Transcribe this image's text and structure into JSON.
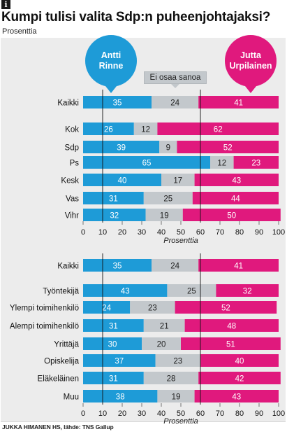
{
  "header": {
    "info_icon": "i",
    "title": "Kumpi tulisi valita Sdp:n puheenjohtajaksi?",
    "subtitle": "Prosenttia"
  },
  "labels": {
    "left_candidate": "Antti\nRinne",
    "right_candidate": "Jutta\nUrpilainen",
    "neutral": "Ei osaa sanoa"
  },
  "source": "JUKKA HIMANEN HS, lähde: TNS Gallup",
  "colors": {
    "rinne": "#1e9bd7",
    "neutral": "#c3c8cc",
    "urpilainen": "#e0197d",
    "background": "#ececec"
  },
  "chart_data": [
    {
      "type": "bar",
      "stacked": true,
      "orientation": "horizontal",
      "xlabel": "Prosenttia",
      "xlim": [
        0,
        100
      ],
      "xticks": [
        0,
        10,
        20,
        30,
        40,
        50,
        60,
        70,
        80,
        90,
        100
      ],
      "categories": [
        "Kaikki",
        "Kok",
        "Sdp",
        "Ps",
        "Kesk",
        "Vas",
        "Vihr"
      ],
      "series": [
        {
          "name": "Antti Rinne",
          "values": [
            35,
            26,
            39,
            65,
            40,
            31,
            32
          ]
        },
        {
          "name": "Ei osaa sanoa",
          "values": [
            24,
            12,
            9,
            12,
            17,
            25,
            19
          ]
        },
        {
          "name": "Jutta Urpilainen",
          "values": [
            41,
            62,
            52,
            23,
            43,
            44,
            50
          ]
        }
      ]
    },
    {
      "type": "bar",
      "stacked": true,
      "orientation": "horizontal",
      "xlabel": "Prosenttia",
      "xlim": [
        0,
        100
      ],
      "xticks": [
        0,
        10,
        20,
        30,
        40,
        50,
        60,
        70,
        80,
        90,
        100
      ],
      "categories": [
        "Kaikki",
        "Työntekijä",
        "Ylempi toimihenkilö",
        "Alempi toimihenkilö",
        "Yrittäjä",
        "Opiskelija",
        "Eläkeläinen",
        "Muu"
      ],
      "series": [
        {
          "name": "Antti Rinne",
          "values": [
            35,
            43,
            24,
            31,
            30,
            37,
            31,
            38
          ]
        },
        {
          "name": "Ei osaa sanoa",
          "values": [
            24,
            25,
            23,
            21,
            20,
            23,
            28,
            19
          ]
        },
        {
          "name": "Jutta Urpilainen",
          "values": [
            41,
            32,
            52,
            48,
            51,
            40,
            42,
            43
          ]
        }
      ]
    }
  ]
}
